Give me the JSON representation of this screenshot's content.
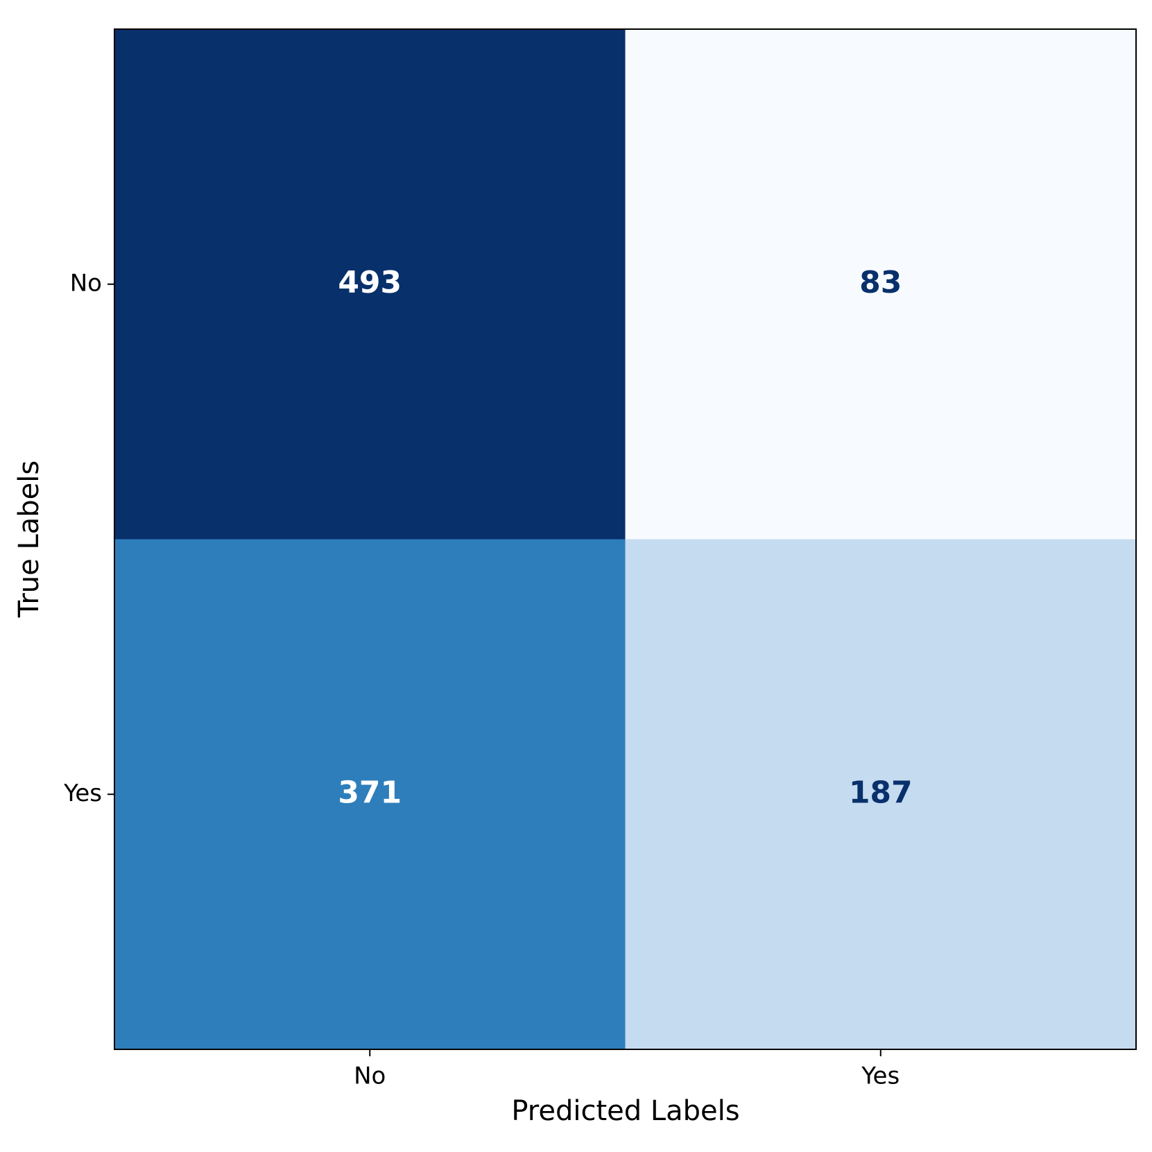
{
  "chart_data": {
    "type": "heatmap",
    "x_label": "Predicted Labels",
    "y_label": "True Labels",
    "x_categories": [
      "No",
      "Yes"
    ],
    "y_categories": [
      "No",
      "Yes"
    ],
    "values": [
      [
        493,
        83
      ],
      [
        371,
        187
      ]
    ],
    "colormap": "Blues"
  }
}
